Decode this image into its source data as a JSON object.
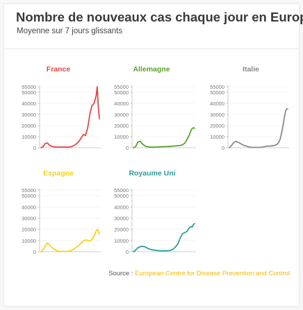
{
  "title": "Nombre de nouveaux cas chaque jour en Europe",
  "subtitle": "Moyenne sur 7 jours glissants",
  "source": {
    "label": "Source : ",
    "link_text": "European Centre for Disease Prevention and Control",
    "link_color": "#f5b800"
  },
  "chart_data": [
    {
      "type": "line",
      "title": "France",
      "color": "#e04a4a",
      "ylim": [
        0,
        55000
      ],
      "yticks": [
        0,
        10000,
        20000,
        30000,
        40000,
        50000,
        55000
      ],
      "x_index": [
        0,
        4,
        8,
        12,
        16,
        20,
        24,
        28,
        32,
        36,
        40,
        44,
        48,
        52,
        56,
        60,
        64,
        68,
        72,
        76,
        80,
        84,
        88,
        92,
        96,
        100,
        104,
        106,
        108,
        110
      ],
      "values": [
        0,
        1000,
        3800,
        4300,
        2200,
        1300,
        800,
        600,
        700,
        500,
        600,
        700,
        500,
        600,
        800,
        1500,
        2500,
        4000,
        6000,
        9000,
        12000,
        11000,
        18000,
        30000,
        38000,
        40000,
        47000,
        55000,
        36000,
        26000
      ]
    },
    {
      "type": "line",
      "title": "Allemagne",
      "color": "#5aa02c",
      "ylim": [
        0,
        55000
      ],
      "yticks": [
        0,
        10000,
        20000,
        30000,
        40000,
        50000,
        55000
      ],
      "x_index": [
        0,
        4,
        8,
        12,
        16,
        20,
        24,
        28,
        32,
        36,
        40,
        44,
        48,
        52,
        56,
        60,
        64,
        68,
        72,
        76,
        80,
        84,
        88,
        92,
        96,
        100,
        104,
        106,
        108,
        110
      ],
      "values": [
        0,
        1000,
        5000,
        5800,
        3500,
        1800,
        1000,
        700,
        500,
        500,
        600,
        700,
        800,
        900,
        1000,
        1000,
        1100,
        1300,
        1500,
        1600,
        1800,
        2000,
        2500,
        4000,
        7000,
        11000,
        16000,
        17500,
        18000,
        17500
      ]
    },
    {
      "type": "line",
      "title": "Italie",
      "color": "#8a8a8a",
      "ylim": [
        0,
        55000
      ],
      "yticks": [
        0,
        10000,
        20000,
        30000,
        40000,
        50000,
        55000
      ],
      "x_index": [
        0,
        4,
        8,
        12,
        16,
        20,
        24,
        28,
        32,
        36,
        40,
        44,
        48,
        52,
        56,
        60,
        64,
        68,
        72,
        76,
        80,
        84,
        88,
        92,
        96,
        100,
        104,
        106,
        108,
        110
      ],
      "values": [
        0,
        2000,
        4500,
        5800,
        5000,
        4000,
        3000,
        2000,
        1500,
        800,
        500,
        300,
        300,
        300,
        300,
        400,
        700,
        1200,
        1500,
        1500,
        1700,
        2000,
        2500,
        4000,
        8000,
        17000,
        28000,
        33000,
        35000,
        35000
      ]
    },
    {
      "type": "line",
      "title": "Espagne",
      "color": "#f5d21f",
      "ylim": [
        0,
        55000
      ],
      "yticks": [
        0,
        10000,
        20000,
        30000,
        40000,
        50000,
        55000
      ],
      "x_index": [
        0,
        4,
        8,
        12,
        16,
        20,
        24,
        28,
        32,
        36,
        40,
        44,
        48,
        52,
        56,
        60,
        64,
        68,
        72,
        76,
        80,
        84,
        88,
        92,
        96,
        100,
        104,
        106,
        108,
        110
      ],
      "values": [
        0,
        2000,
        5000,
        7800,
        6500,
        4000,
        2500,
        1200,
        700,
        400,
        300,
        300,
        300,
        500,
        800,
        1800,
        3000,
        4500,
        6000,
        8000,
        9500,
        10500,
        10000,
        9500,
        11000,
        14000,
        18500,
        20000,
        19000,
        16000
      ]
    },
    {
      "type": "line",
      "title": "Royaume Uni",
      "color": "#2a9d96",
      "ylim": [
        0,
        55000
      ],
      "yticks": [
        0,
        10000,
        20000,
        30000,
        40000,
        50000,
        55000
      ],
      "x_index": [
        0,
        4,
        8,
        12,
        16,
        20,
        24,
        28,
        32,
        36,
        40,
        44,
        48,
        52,
        56,
        60,
        64,
        68,
        72,
        76,
        80,
        84,
        88,
        92,
        96,
        100,
        104,
        106,
        108,
        110
      ],
      "values": [
        0,
        1500,
        3500,
        4500,
        4800,
        4500,
        3500,
        2500,
        2000,
        1500,
        1300,
        1000,
        900,
        800,
        800,
        900,
        1000,
        1500,
        2500,
        4500,
        7000,
        12000,
        16000,
        17000,
        18000,
        21000,
        22500,
        22000,
        24500,
        25000
      ]
    }
  ]
}
